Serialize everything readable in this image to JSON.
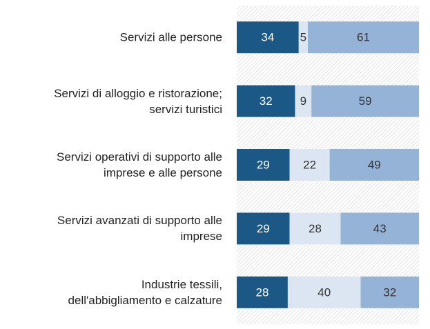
{
  "chart_data": {
    "type": "bar",
    "orientation": "horizontal",
    "stacked": true,
    "categories": [
      "Servizi alle persone",
      "Servizi di alloggio e ristorazione;\nservizi turistici",
      "Servizi operativi di supporto alle\nimprese e alle persone",
      "Servizi avanzati di supporto alle\nimprese",
      "Industrie tessili,\ndell'abbigliamento e calzature"
    ],
    "series": [
      {
        "color": "#1b5886",
        "values": [
          34,
          32,
          29,
          29,
          28
        ]
      },
      {
        "color": "#dce6f2",
        "values": [
          5,
          9,
          22,
          28,
          40
        ]
      },
      {
        "color": "#95b3d7",
        "values": [
          61,
          59,
          49,
          43,
          32
        ]
      }
    ],
    "xlim": [
      0,
      100
    ]
  }
}
